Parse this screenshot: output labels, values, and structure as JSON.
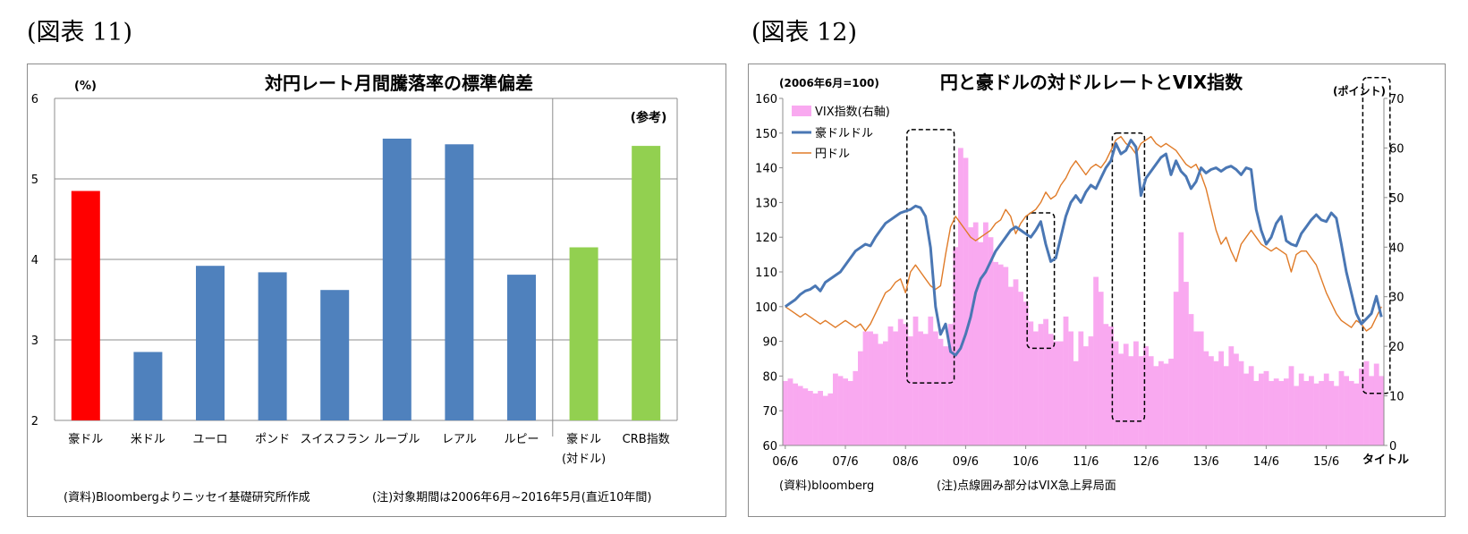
{
  "figures": {
    "left_label": "(図表 11)",
    "right_label": "(図表 12)"
  },
  "chart_data": [
    {
      "type": "bar",
      "title": "対円レート月間騰落率の標準偏差",
      "y_unit_label": "(%)",
      "ylim": [
        2,
        6
      ],
      "yticks": [
        "2",
        "3",
        "4",
        "5",
        "6"
      ],
      "categories": [
        "豪ドル",
        "米ドル",
        "ユーロ",
        "ポンド",
        "スイスフラン",
        "ルーブル",
        "レアル",
        "ルピー",
        "豪ドル",
        "CRB指数"
      ],
      "category_sublabels": [
        "",
        "",
        "",
        "",
        "",
        "",
        "",
        "",
        "(対ドル)",
        ""
      ],
      "values": [
        4.85,
        2.85,
        3.92,
        3.84,
        3.62,
        5.5,
        5.43,
        3.81,
        4.15,
        5.41
      ],
      "bar_colors": [
        "#ff0000",
        "#4f81bd",
        "#4f81bd",
        "#4f81bd",
        "#4f81bd",
        "#4f81bd",
        "#4f81bd",
        "#4f81bd",
        "#92d050",
        "#92d050"
      ],
      "reference_label": "(参考)",
      "reference_start_index": 8,
      "grid": true,
      "source_note": "(資料)Bloombergよりニッセイ基礎研究所作成",
      "period_note": "(注)対象期間は2006年6月~2016年5月(直近10年間)"
    },
    {
      "type": "line",
      "title": "円と豪ドルの対ドルレートとVIX指数",
      "left_axis_label": "(2006年6月=100)",
      "right_axis_label": "(ポイント)",
      "ylim_left": [
        60,
        160
      ],
      "yticks_left": [
        "60",
        "70",
        "80",
        "90",
        "100",
        "110",
        "120",
        "130",
        "140",
        "150",
        "160"
      ],
      "ylim_right": [
        0,
        70
      ],
      "yticks_right": [
        "0",
        "10",
        "20",
        "30",
        "40",
        "50",
        "60",
        "70"
      ],
      "xticks": [
        "06/6",
        "07/6",
        "08/6",
        "09/6",
        "10/6",
        "11/6",
        "12/6",
        "13/6",
        "14/6",
        "15/6"
      ],
      "x_axis_suffix": "タイトル",
      "x_start": "2006-06",
      "months": 120,
      "series": [
        {
          "name": "VIX指数(右軸)",
          "kind": "bar",
          "axis": "right",
          "color": "#f9a9f0",
          "values": [
            13.0,
            13.5,
            12.5,
            12.0,
            11.5,
            11.0,
            10.5,
            11.0,
            10.0,
            10.5,
            14.5,
            14.0,
            13.5,
            13.0,
            15.0,
            19.0,
            23.0,
            23.0,
            22.5,
            20.5,
            21.0,
            24.0,
            23.0,
            25.5,
            24.5,
            22.0,
            26.0,
            23.0,
            22.5,
            26.0,
            23.0,
            21.5,
            20.0,
            24.5,
            40.0,
            60.0,
            58.0,
            44.0,
            45.0,
            41.0,
            45.0,
            42.0,
            37.0,
            36.5,
            36.0,
            32.0,
            33.5,
            31.0,
            29.0,
            25.0,
            23.0,
            24.5,
            25.5,
            22.5,
            21.0,
            21.0,
            26.0,
            23.0,
            17.0,
            23.0,
            20.0,
            22.0,
            34.0,
            31.0,
            24.5,
            24.0,
            21.0,
            18.5,
            20.5,
            18.0,
            21.0,
            18.0,
            20.0,
            18.0,
            16.0,
            17.0,
            16.5,
            17.5,
            31.0,
            43.0,
            33.0,
            26.5,
            23.0,
            23.0,
            19.0,
            18.0,
            17.0,
            19.0,
            16.0,
            20.0,
            18.5,
            17.0,
            14.5,
            16.0,
            13.0,
            14.5,
            15.0,
            13.0,
            13.5,
            13.0,
            13.5,
            16.0,
            12.0,
            14.5,
            13.0,
            14.0,
            12.5,
            13.0,
            14.5,
            13.0,
            12.0,
            15.0,
            14.0,
            13.0,
            12.5,
            15.5,
            17.0,
            14.0,
            16.5,
            14.0
          ]
        },
        {
          "name": "豪ドルドル",
          "kind": "line",
          "axis": "left",
          "color": "#4a77b4",
          "values": [
            100.0,
            101.0,
            102.0,
            103.5,
            104.5,
            105.0,
            106.0,
            104.5,
            107.0,
            108.0,
            109.0,
            110.0,
            112.0,
            114.0,
            116.0,
            117.0,
            118.0,
            117.5,
            120.0,
            122.0,
            124.0,
            125.0,
            126.0,
            127.0,
            127.5,
            128.0,
            129.0,
            128.5,
            126.0,
            117.0,
            100.0,
            92.0,
            95.0,
            87.0,
            86.0,
            88.0,
            92.0,
            97.0,
            104.0,
            108.0,
            110.0,
            113.0,
            116.0,
            118.0,
            120.0,
            122.0,
            123.0,
            122.0,
            121.0,
            120.0,
            122.0,
            124.5,
            118.0,
            113.0,
            114.0,
            120.0,
            126.0,
            130.0,
            132.0,
            130.0,
            133.0,
            135.0,
            134.0,
            137.0,
            140.0,
            142.0,
            147.0,
            144.0,
            145.0,
            148.0,
            146.0,
            132.0,
            137.0,
            139.0,
            141.0,
            143.0,
            144.0,
            138.0,
            142.0,
            139.0,
            137.5,
            134.0,
            136.0,
            140.0,
            138.5,
            139.5,
            140.0,
            139.0,
            140.0,
            140.5,
            139.5,
            138.0,
            140.0,
            139.5,
            128.0,
            122.0,
            118.0,
            120.0,
            124.0,
            126.0,
            119.0,
            118.0,
            117.5,
            121.0,
            123.0,
            125.0,
            126.5,
            125.0,
            124.5,
            127.0,
            125.5,
            118.0,
            110.0,
            104.0,
            98.0,
            95.0,
            96.5,
            98.0,
            103.0,
            97.0
          ]
        },
        {
          "name": "円ドル",
          "kind": "line",
          "axis": "left",
          "color": "#e07b28",
          "values": [
            100.0,
            99.0,
            98.0,
            97.0,
            98.0,
            97.0,
            96.0,
            95.0,
            96.0,
            95.0,
            94.0,
            95.0,
            96.0,
            95.0,
            94.0,
            95.0,
            93.0,
            95.0,
            98.0,
            101.0,
            104.0,
            105.0,
            107.0,
            108.0,
            104.0,
            110.0,
            112.0,
            110.0,
            108.0,
            106.0,
            105.0,
            106.0,
            115.0,
            123.0,
            126.0,
            124.0,
            122.0,
            120.0,
            119.0,
            120.0,
            121.0,
            122.0,
            124.0,
            125.0,
            128.0,
            126.0,
            121.0,
            124.0,
            126.0,
            127.0,
            128.0,
            130.0,
            133.0,
            131.0,
            132.0,
            135.0,
            137.0,
            140.0,
            142.0,
            140.0,
            138.0,
            140.0,
            141.0,
            140.0,
            142.0,
            145.0,
            148.0,
            149.0,
            147.0,
            146.0,
            144.0,
            147.0,
            148.0,
            149.0,
            147.0,
            146.0,
            147.0,
            146.0,
            145.0,
            143.0,
            141.0,
            140.0,
            141.0,
            138.0,
            134.0,
            128.0,
            122.0,
            118.0,
            120.0,
            116.0,
            113.0,
            118.0,
            120.0,
            122.0,
            120.0,
            118.0,
            117.0,
            116.0,
            117.0,
            116.0,
            115.0,
            110.0,
            115.0,
            116.0,
            116.0,
            114.0,
            112.0,
            108.0,
            104.0,
            101.0,
            98.0,
            96.0,
            95.0,
            94.0,
            96.0,
            95.0,
            93.0,
            94.0,
            97.0,
            100.0
          ]
        }
      ],
      "highlight_label": "(注)点線囲み部分はVIX急上昇局面",
      "source_note": "(資料)bloomberg"
    }
  ]
}
